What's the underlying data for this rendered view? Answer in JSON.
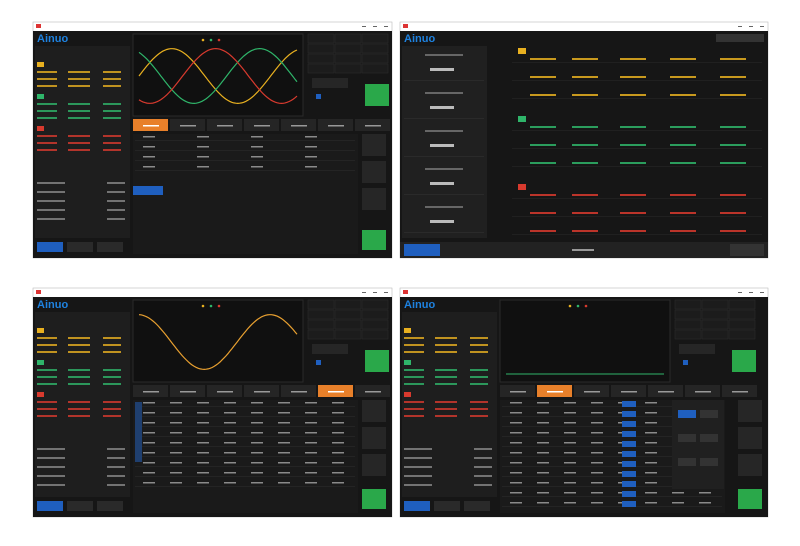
{
  "windows": [
    {
      "logo": "Ainuo"
    },
    {
      "logo": "Ainuo"
    },
    {
      "logo": "Ainuo"
    },
    {
      "logo": "Ainuo"
    }
  ]
}
